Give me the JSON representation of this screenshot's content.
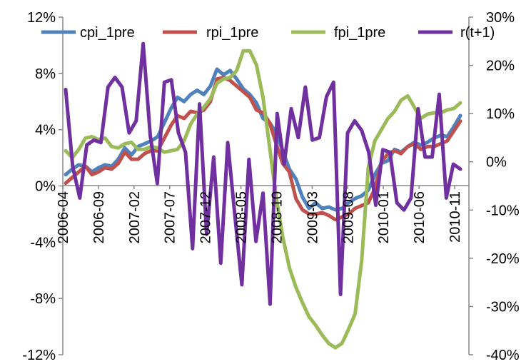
{
  "chart_data": {
    "type": "line",
    "title": "",
    "xlabel": "",
    "ylabel": "",
    "x_tick_labels": [
      "2006-04",
      "2006-09",
      "2007-02",
      "2007-07",
      "2007-12",
      "2008-05",
      "2008-10",
      "2009-03",
      "2009-08",
      "2010-01",
      "2010-06",
      "2010-11"
    ],
    "x_start": "2006-04",
    "x_end": "2011-01",
    "y_left": {
      "ylim": [
        -12,
        12
      ],
      "ticks": [
        -12,
        -8,
        -4,
        0,
        4,
        8,
        12
      ],
      "tick_labels": [
        "-12%",
        "-8%",
        "-4%",
        "0%",
        "4%",
        "8%",
        "12%"
      ]
    },
    "y_right": {
      "ylim": [
        -40,
        30
      ],
      "ticks": [
        -40,
        -30,
        -20,
        -10,
        0,
        10,
        20,
        30
      ],
      "tick_labels": [
        "-40%",
        "-30%",
        "-20%",
        "-10%",
        "0%",
        "10%",
        "20%",
        "30%"
      ]
    },
    "legend_position": "top",
    "series": [
      {
        "name": "cpi_1pre",
        "color": "#4F81BD",
        "axis": "left",
        "values": [
          0.8,
          1.2,
          1.5,
          1.4,
          1.0,
          1.3,
          1.5,
          1.4,
          1.9,
          2.7,
          2.2,
          2.8,
          3.0,
          3.2,
          3.5,
          4.5,
          5.5,
          6.3,
          6.0,
          6.5,
          6.8,
          6.5,
          7.1,
          8.3,
          7.9,
          8.2,
          7.6,
          6.9,
          6.5,
          5.9,
          4.8,
          4.5,
          3.8,
          2.5,
          1.2,
          0.5,
          -0.8,
          -1.6,
          -1.2,
          -1.6,
          -1.5,
          -1.7,
          -1.6,
          -1.2,
          -0.9,
          -0.7,
          -0.3,
          0.8,
          1.6,
          1.8,
          2.6,
          2.4,
          2.8,
          3.1,
          2.9,
          3.1,
          3.4,
          3.6,
          3.5,
          4.2,
          5.0
        ]
      },
      {
        "name": "rpi_1pre",
        "color": "#C0504D",
        "axis": "left",
        "values": [
          0.2,
          0.6,
          1.0,
          1.4,
          0.8,
          1.0,
          1.3,
          1.2,
          1.6,
          2.4,
          1.9,
          1.9,
          2.3,
          2.5,
          2.5,
          3.4,
          4.3,
          5.0,
          4.8,
          5.3,
          5.2,
          5.4,
          6.0,
          7.6,
          7.7,
          7.5,
          7.1,
          6.7,
          6.3,
          5.4,
          5.2,
          4.5,
          3.0,
          1.6,
          1.0,
          -0.9,
          -1.7,
          -2.0,
          -2.0,
          -1.9,
          -2.1,
          -2.4,
          -2.2,
          -2.0,
          -1.6,
          -1.4,
          -1.2,
          -0.2,
          1.7,
          2.3,
          2.5,
          2.3,
          2.8,
          3.0,
          2.6,
          2.8,
          2.8,
          3.0,
          3.2,
          3.9,
          4.6
        ]
      },
      {
        "name": "fpi_1pre",
        "color": "#9BBB59",
        "axis": "left",
        "values": [
          2.5,
          2.0,
          2.6,
          3.4,
          3.5,
          3.3,
          3.4,
          2.8,
          2.7,
          3.0,
          3.1,
          2.6,
          2.6,
          2.8,
          2.7,
          2.4,
          2.5,
          2.6,
          3.2,
          4.4,
          5.1,
          5.6,
          6.2,
          7.3,
          7.6,
          7.7,
          8.2,
          9.6,
          9.6,
          8.6,
          6.3,
          2.8,
          -0.8,
          -3.6,
          -5.8,
          -7.2,
          -8.3,
          -9.3,
          -9.9,
          -10.6,
          -11.2,
          -11.5,
          -11.2,
          -10.2,
          -9.1,
          -5.3,
          1.3,
          3.2,
          4.0,
          4.8,
          5.3,
          6.1,
          6.4,
          5.6,
          4.8,
          5.1,
          5.2,
          5.2,
          5.4,
          5.5,
          5.9
        ]
      },
      {
        "name": "r(t+1)",
        "color": "#7030A0",
        "axis": "right",
        "values": [
          15.0,
          -1.0,
          -7.5,
          3.5,
          4.5,
          4.0,
          15.5,
          17.5,
          15.5,
          6.0,
          8.5,
          24.5,
          5.5,
          -4.5,
          16.5,
          17.0,
          6.0,
          2.0,
          -18.0,
          12.0,
          -15.0,
          1.0,
          -21.0,
          4.0,
          -11.0,
          -25.5,
          0.5,
          -16.5,
          -6.5,
          -29.5,
          10.0,
          -0.5,
          11.0,
          5.0,
          15.5,
          4.5,
          5.0,
          13.5,
          16.5,
          -27.5,
          6.0,
          8.5,
          6.5,
          2.0,
          -9.0,
          2.5,
          2.0,
          -8.5,
          -10.0,
          -7.5,
          11.0,
          1.0,
          1.0,
          14.0,
          -7.5,
          -0.5,
          -1.5
        ]
      }
    ]
  }
}
